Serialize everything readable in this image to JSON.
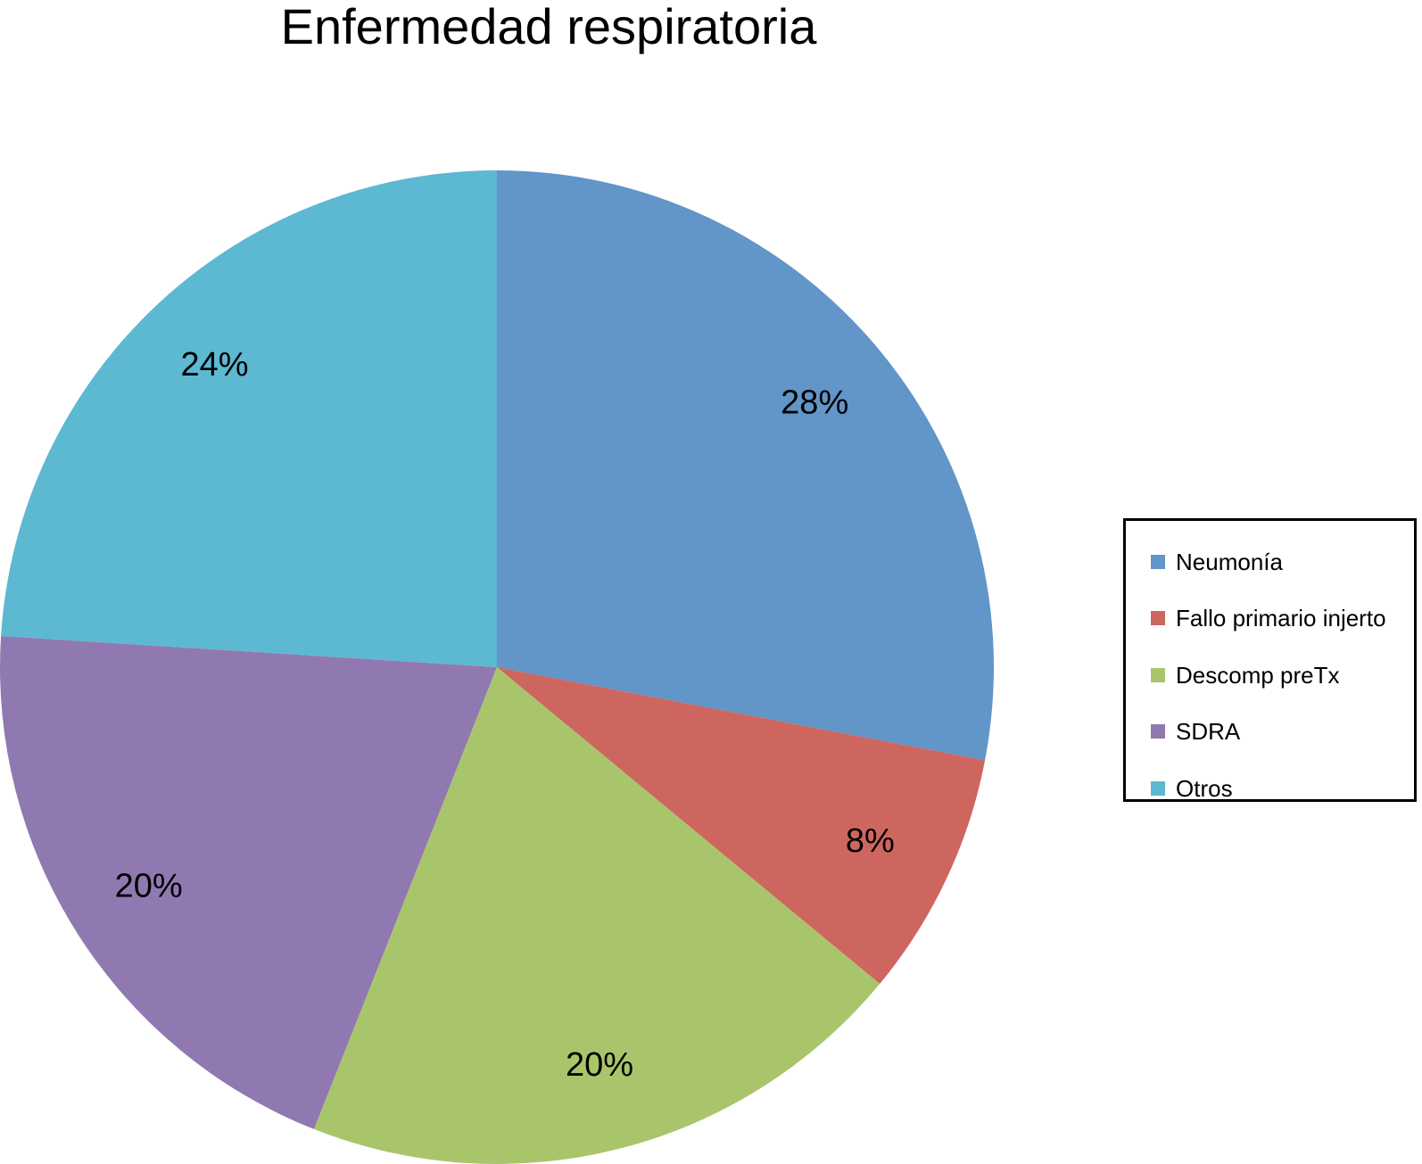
{
  "chart_data": {
    "type": "pie",
    "title": "Enfermedad respiratoria",
    "categories": [
      "Neumonía",
      "Fallo primario injerto",
      "Descomp preTx",
      "SDRA",
      "Otros"
    ],
    "values": [
      28,
      8,
      20,
      20,
      24
    ],
    "value_labels": [
      "28%",
      "8%",
      "20%",
      "20%",
      "24%"
    ],
    "colors": [
      "#6295C8",
      "#CE6660",
      "#A9C56B",
      "#9079B0",
      "#5DB8D1"
    ],
    "start_angle": "12 o'clock",
    "direction": "clockwise",
    "legend_position": "right"
  }
}
